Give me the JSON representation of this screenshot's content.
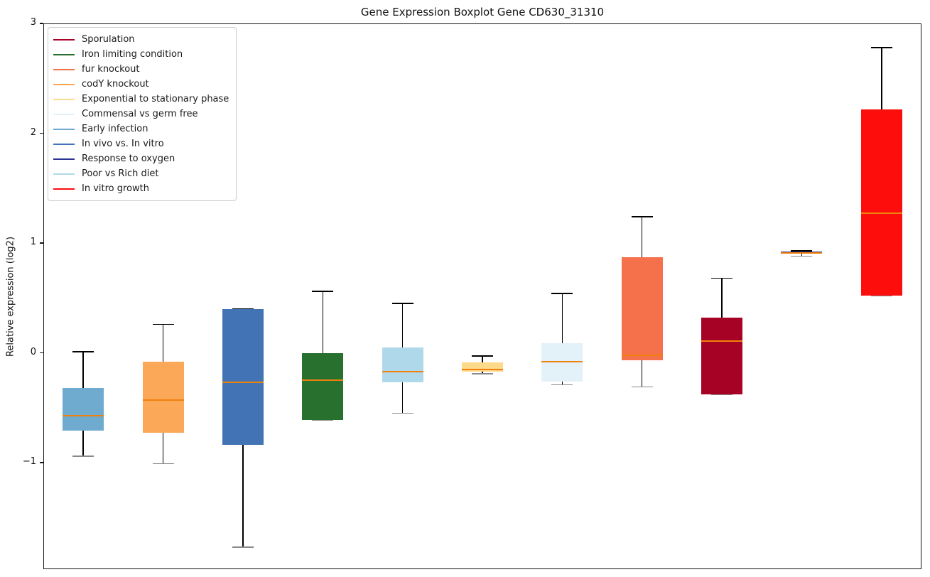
{
  "figure": {
    "title": "Gene Expression Boxplot Gene CD630_31310"
  },
  "chart_data": {
    "type": "boxplot",
    "title": "Gene Expression Boxplot Gene CD630_31310",
    "xlabel": "",
    "ylabel": "Relative expression (log2)",
    "ylim": [
      -1.97,
      3.0
    ],
    "yticks": [
      3,
      2,
      1,
      0,
      -1
    ],
    "grid": false,
    "legend_position": "upper left",
    "median_color": "#ef820d",
    "whisker_color": "#000000",
    "legend": [
      {
        "label": "Sporulation",
        "color": "#a50226"
      },
      {
        "label": "Iron limiting condition",
        "color": "#27702e"
      },
      {
        "label": "fur knockout",
        "color": "#f4714b"
      },
      {
        "label": "codY knockout",
        "color": "#fca859"
      },
      {
        "label": "Exponential to stationary phase",
        "color": "#fdd98a"
      },
      {
        "label": "Commensal vs germ free",
        "color": "#e3f1f8"
      },
      {
        "label": "Early infection",
        "color": "#6faacf"
      },
      {
        "label": "In vivo vs. In vitro",
        "color": "#4273b4"
      },
      {
        "label": "Response to oxygen",
        "color": "#2b3292"
      },
      {
        "label": "Poor vs Rich diet",
        "color": "#afd8ea"
      },
      {
        "label": "In vitro growth",
        "color": "#fe0d0d"
      }
    ],
    "boxes": [
      {
        "condition": "Early infection",
        "color": "#6faacf",
        "whislo": -0.94,
        "q1": -0.71,
        "med": -0.57,
        "q3": -0.32,
        "whishi": 0.01
      },
      {
        "condition": "codY knockout",
        "color": "#fca859",
        "whislo": -1.01,
        "q1": -0.73,
        "med": -0.43,
        "q3": -0.08,
        "whishi": 0.26
      },
      {
        "condition": "In vivo vs. In vitro",
        "color": "#4273b4",
        "whislo": -1.77,
        "q1": -0.84,
        "med": -0.27,
        "q3": 0.4,
        "whishi": 0.4
      },
      {
        "condition": "Iron limiting condition",
        "color": "#27702e",
        "whislo": -0.61,
        "q1": -0.61,
        "med": -0.25,
        "q3": 0.0,
        "whishi": 0.56
      },
      {
        "condition": "Poor vs Rich diet",
        "color": "#afd8ea",
        "whislo": -0.55,
        "q1": -0.27,
        "med": -0.17,
        "q3": 0.05,
        "whishi": 0.45
      },
      {
        "condition": "Exponential to stationary phase",
        "color": "#fdd98a",
        "whislo": -0.19,
        "q1": -0.17,
        "med": -0.15,
        "q3": -0.09,
        "whishi": -0.03
      },
      {
        "condition": "Commensal vs germ free",
        "color": "#e3f1f8",
        "whislo": -0.29,
        "q1": -0.26,
        "med": -0.08,
        "q3": 0.09,
        "whishi": 0.54
      },
      {
        "condition": "fur knockout",
        "color": "#f4714b",
        "whislo": -0.31,
        "q1": -0.07,
        "med": -0.02,
        "q3": 0.87,
        "whishi": 1.24
      },
      {
        "condition": "Sporulation",
        "color": "#a50226",
        "whislo": -0.38,
        "q1": -0.38,
        "med": 0.11,
        "q3": 0.32,
        "whishi": 0.68
      },
      {
        "condition": "Response to oxygen",
        "color": "#2b3292",
        "whislo": 0.88,
        "q1": 0.9,
        "med": 0.91,
        "q3": 0.92,
        "whishi": 0.93
      },
      {
        "condition": "In vitro growth",
        "color": "#fe0d0d",
        "whislo": 0.52,
        "q1": 0.52,
        "med": 1.27,
        "q3": 2.22,
        "whishi": 2.78
      }
    ]
  }
}
